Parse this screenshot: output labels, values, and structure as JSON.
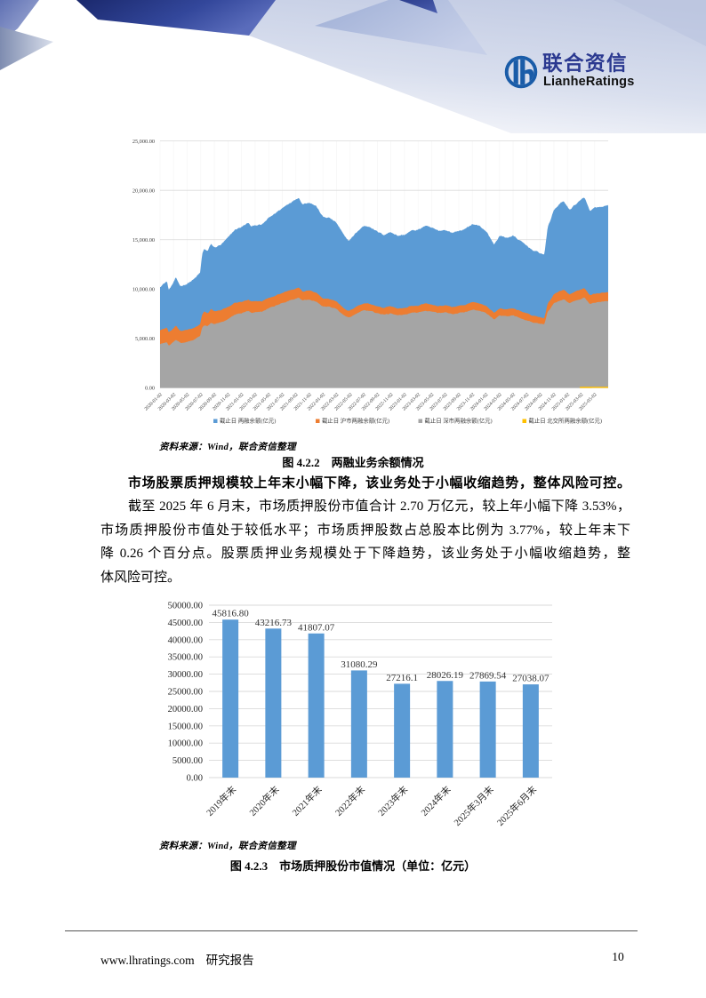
{
  "page": {
    "number": "10"
  },
  "header": {
    "logo": {
      "cjk": "联合资信",
      "latin": "LianheRatings",
      "ring_color": "#1A5CA8",
      "cjk_color": "#2B3990",
      "latin_color": "#111111"
    },
    "banner_colors": {
      "navy_dark": "#1B2A6E",
      "navy_light": "#5668B8",
      "medium_blue": "#A9B6D9",
      "pale_blue": "#C7CFE5",
      "corner_blue": "#6274B5",
      "gray_wedge": "#8593B5"
    }
  },
  "chart_data": [
    {
      "type": "area",
      "name": "margin-balance-area-chart",
      "ylim": [
        0,
        25000
      ],
      "ytick_step": 5000,
      "ytick_labels": [
        "0.00",
        "5,000.00",
        "10,000.00",
        "15,000.00",
        "20,000.00",
        "25,000.00"
      ],
      "xtick_labels": [
        "2020-01-02",
        "2020-03-02",
        "2020-05-02",
        "2020-07-02",
        "2020-09-02",
        "2020-11-02",
        "2021-01-02",
        "2021-03-02",
        "2021-05-02",
        "2021-07-02",
        "2021-09-02",
        "2021-11-02",
        "2022-01-02",
        "2022-03-02",
        "2022-05-02",
        "2022-07-02",
        "2022-09-02",
        "2022-11-02",
        "2023-01-02",
        "2023-03-02",
        "2023-05-02",
        "2023-07-02",
        "2023-09-02",
        "2023-11-02",
        "2024-01-02",
        "2024-03-02",
        "2024-05-02",
        "2024-07-02",
        "2024-09-02",
        "2024-11-02",
        "2025-01-02",
        "2025-03-02",
        "2025-05-02"
      ],
      "x_months_total": 66,
      "legend": [
        {
          "label": "截止日 两融余额(亿元)",
          "color": "#5B9BD5"
        },
        {
          "label": "截止日 沪市两融余额(亿元)",
          "color": "#ED7D31"
        },
        {
          "label": "截止日 深市两融余额(亿元)",
          "color": "#A5A5A5"
        },
        {
          "label": "截止日 北交所两融余额(亿元)",
          "color": "#FFC000"
        }
      ],
      "series": [
        {
          "name": "截止日 两融余额(亿元)",
          "color": "#5B9BD5",
          "render": "area",
          "jitter": 55,
          "keypoints": [
            [
              0,
              10250
            ],
            [
              1,
              10800
            ],
            [
              1.3,
              9900
            ],
            [
              2,
              10700
            ],
            [
              2.3,
              11150
            ],
            [
              3,
              10300
            ],
            [
              4,
              10550
            ],
            [
              5,
              11000
            ],
            [
              5.9,
              11650
            ],
            [
              6.2,
              13500
            ],
            [
              6.5,
              14100
            ],
            [
              7,
              13800
            ],
            [
              7.5,
              14600
            ],
            [
              8,
              14200
            ],
            [
              9,
              14500
            ],
            [
              10,
              15200
            ],
            [
              11,
              16000
            ],
            [
              12,
              16300
            ],
            [
              13,
              16700
            ],
            [
              13.5,
              16300
            ],
            [
              14,
              16500
            ],
            [
              15,
              16500
            ],
            [
              16,
              17200
            ],
            [
              17,
              17700
            ],
            [
              18,
              18200
            ],
            [
              19,
              18700
            ],
            [
              20,
              19100
            ],
            [
              20.4,
              19300
            ],
            [
              21,
              18600
            ],
            [
              22,
              18800
            ],
            [
              23,
              18400
            ],
            [
              24,
              17300
            ],
            [
              25,
              17200
            ],
            [
              26,
              16700
            ],
            [
              27.2,
              15300
            ],
            [
              27.8,
              14900
            ],
            [
              28.5,
              15400
            ],
            [
              29,
              15800
            ],
            [
              30,
              16400
            ],
            [
              31,
              16300
            ],
            [
              32,
              15800
            ],
            [
              33,
              15500
            ],
            [
              34,
              15800
            ],
            [
              35,
              15400
            ],
            [
              36,
              15500
            ],
            [
              37,
              15900
            ],
            [
              38,
              16000
            ],
            [
              39,
              16400
            ],
            [
              40,
              16200
            ],
            [
              41,
              15900
            ],
            [
              42,
              16000
            ],
            [
              43,
              15700
            ],
            [
              44,
              15900
            ],
            [
              45,
              16100
            ],
            [
              46,
              16600
            ],
            [
              47,
              16400
            ],
            [
              48,
              15900
            ],
            [
              49.2,
              14500
            ],
            [
              50,
              15400
            ],
            [
              51,
              15200
            ],
            [
              52,
              15400
            ],
            [
              53,
              14900
            ],
            [
              54,
              14400
            ],
            [
              55,
              13900
            ],
            [
              56.6,
              13500
            ],
            [
              57.1,
              16300
            ],
            [
              57.5,
              17000
            ],
            [
              58,
              18000
            ],
            [
              58.5,
              18400
            ],
            [
              59,
              18700
            ],
            [
              59.5,
              18900
            ],
            [
              60.3,
              18000
            ],
            [
              61,
              18500
            ],
            [
              62,
              19000
            ],
            [
              62.5,
              19300
            ],
            [
              63.3,
              17900
            ],
            [
              64,
              18200
            ],
            [
              65,
              18300
            ],
            [
              66,
              18500
            ]
          ]
        },
        {
          "name": "截止日 沪市两融余额(亿元)",
          "color": "#ED7D31",
          "render": "area",
          "jitter": 32,
          "keypoints": [
            [
              0,
              5842
            ],
            [
              1,
              6120
            ],
            [
              1.3,
              5600
            ],
            [
              2,
              6028
            ],
            [
              2.3,
              6270
            ],
            [
              3,
              5768
            ],
            [
              4,
              5873
            ],
            [
              5,
              6087
            ],
            [
              5.9,
              6410
            ],
            [
              6.2,
              7420
            ],
            [
              6.5,
              7750
            ],
            [
              7,
              7560
            ],
            [
              7.5,
              7975
            ],
            [
              8,
              7739
            ],
            [
              9,
              7866
            ],
            [
              10,
              8208
            ],
            [
              11,
              8600
            ],
            [
              12,
              8720
            ],
            [
              13,
              8915
            ],
            [
              13.5,
              8692
            ],
            [
              14,
              8789
            ],
            [
              15,
              8770
            ],
            [
              16,
              9122
            ],
            [
              17,
              9366
            ],
            [
              18,
              9610
            ],
            [
              19,
              9858
            ],
            [
              20,
              10053
            ],
            [
              20.4,
              10152
            ],
            [
              21,
              9774
            ],
            [
              22,
              9864
            ],
            [
              23,
              9639
            ],
            [
              24,
              9048
            ],
            [
              25,
              8994
            ],
            [
              26,
              8731
            ],
            [
              27.2,
              7998
            ],
            [
              27.8,
              7788
            ],
            [
              28.5,
              8048
            ],
            [
              29,
              8257
            ],
            [
              30,
              8569
            ],
            [
              31,
              8515
            ],
            [
              32,
              8253
            ],
            [
              33,
              8095
            ],
            [
              34,
              8250
            ],
            [
              35,
              8040
            ],
            [
              36,
              8091
            ],
            [
              37,
              8301
            ],
            [
              38,
              8355
            ],
            [
              39,
              8565
            ],
            [
              40,
              8462
            ],
            [
              41,
              8306
            ],
            [
              42,
              8360
            ],
            [
              43,
              8205
            ],
            [
              44,
              8310
            ],
            [
              45,
              8416
            ],
            [
              46,
              8679
            ],
            [
              47,
              8576
            ],
            [
              48,
              8316
            ],
            [
              49.2,
              7587
            ],
            [
              50,
              8061
            ],
            [
              51,
              7960
            ],
            [
              52,
              8068
            ],
            [
              53,
              7809
            ],
            [
              54,
              7550
            ],
            [
              55,
              7291
            ],
            [
              56.6,
              7086
            ],
            [
              57.1,
              8558
            ],
            [
              57.5,
              8925
            ],
            [
              58,
              9450
            ],
            [
              58.5,
              9660
            ],
            [
              59,
              9818
            ],
            [
              59.5,
              9922
            ],
            [
              60.3,
              9450
            ],
            [
              61,
              9712
            ],
            [
              62,
              9975
            ],
            [
              62.5,
              10132
            ],
            [
              63.3,
              9398
            ],
            [
              64,
              9555
            ],
            [
              65,
              9608
            ],
            [
              66,
              9712
            ]
          ]
        },
        {
          "name": "截止日 深市两融余额(亿元)",
          "color": "#A5A5A5",
          "render": "area",
          "jitter": 32,
          "keypoints": [
            [
              0,
              4408
            ],
            [
              1,
              4680
            ],
            [
              1.3,
              4300
            ],
            [
              2,
              4672
            ],
            [
              2.3,
              4880
            ],
            [
              3,
              4532
            ],
            [
              4,
              4677
            ],
            [
              5,
              4913
            ],
            [
              5.9,
              5240
            ],
            [
              6.2,
              6080
            ],
            [
              6.5,
              6350
            ],
            [
              7,
              6240
            ],
            [
              7.5,
              6625
            ],
            [
              8,
              6461
            ],
            [
              9,
              6634
            ],
            [
              10,
              6992
            ],
            [
              11,
              7400
            ],
            [
              12,
              7579
            ],
            [
              13,
              7785
            ],
            [
              13.5,
              7608
            ],
            [
              14,
              7711
            ],
            [
              15,
              7730
            ],
            [
              16,
              8078
            ],
            [
              17,
              8334
            ],
            [
              18,
              8590
            ],
            [
              19,
              8842
            ],
            [
              20,
              9047
            ],
            [
              20.4,
              9148
            ],
            [
              21,
              8826
            ],
            [
              22,
              8936
            ],
            [
              23,
              8761
            ],
            [
              24,
              8252
            ],
            [
              25,
              8206
            ],
            [
              26,
              7969
            ],
            [
              27.2,
              7302
            ],
            [
              27.8,
              7112
            ],
            [
              28.5,
              7352
            ],
            [
              29,
              7543
            ],
            [
              30,
              7831
            ],
            [
              31,
              7785
            ],
            [
              32,
              7547
            ],
            [
              33,
              7405
            ],
            [
              34,
              7550
            ],
            [
              35,
              7360
            ],
            [
              36,
              7409
            ],
            [
              37,
              7599
            ],
            [
              38,
              7645
            ],
            [
              39,
              7835
            ],
            [
              40,
              7738
            ],
            [
              41,
              7594
            ],
            [
              42,
              7640
            ],
            [
              43,
              7495
            ],
            [
              44,
              7590
            ],
            [
              45,
              7684
            ],
            [
              46,
              7921
            ],
            [
              47,
              7824
            ],
            [
              48,
              7584
            ],
            [
              49.2,
              6913
            ],
            [
              50,
              7339
            ],
            [
              51,
              7240
            ],
            [
              52,
              7332
            ],
            [
              53,
              7091
            ],
            [
              54,
              6850
            ],
            [
              55,
              6609
            ],
            [
              56.6,
              6414
            ],
            [
              57.1,
              7742
            ],
            [
              57.5,
              8075
            ],
            [
              58,
              8550
            ],
            [
              58.5,
              8740
            ],
            [
              59,
              8882
            ],
            [
              59.5,
              8978
            ],
            [
              60.3,
              8550
            ],
            [
              61,
              8788
            ],
            [
              62,
              9025
            ],
            [
              62.5,
              9168
            ],
            [
              63.3,
              8502
            ],
            [
              64,
              8645
            ],
            [
              65,
              8692
            ],
            [
              66,
              8788
            ]
          ]
        },
        {
          "name": "截止日 北交所两融余额(亿元)",
          "color": "#FFC000",
          "render": "line",
          "jitter": 0,
          "keypoints": [
            [
              61.8,
              55
            ],
            [
              66,
              60
            ]
          ]
        }
      ],
      "source": "资料来源：Wind，联合资信整理",
      "caption": "图 4.2.2　两融业务余额情况"
    },
    {
      "type": "bar",
      "name": "pledged-shares-bar-chart",
      "categories": [
        "2019年末",
        "2020年末",
        "2021年末",
        "2022年末",
        "2023年末",
        "2024年末",
        "2025年3月末",
        "2025年6月末"
      ],
      "values": [
        45816.8,
        43216.73,
        41807.07,
        31080.29,
        27216.1,
        28026.19,
        27869.54,
        27038.07
      ],
      "value_labels": [
        "45816.80",
        "43216.73",
        "41807.07",
        "31080.29",
        "27216.1",
        "28026.19",
        "27869.54",
        "27038.07"
      ],
      "ylim": [
        0,
        50000
      ],
      "ytick_step": 5000,
      "bar_color": "#5B9BD5",
      "source": "资料来源：Wind，联合资信整理",
      "caption": "图 4.2.3　市场质押股份市值情况（单位：亿元）"
    }
  ],
  "paragraphs": {
    "bold_line": "市场股票质押规模较上年末小幅下降，该业务处于小幅收缩趋势，整体风险可控。",
    "p2_line1": "截至 2025 年 6 月末，市场质押股份市值合计 2.70 万亿元，较上年小幅下降 3.53%，",
    "p2_line2": "市场质押股份市值处于较低水平；市场质押股数占总股本比例为 3.77%，较上年末下",
    "p2_line3": "降 0.26 个百分点。股票质押业务规模处于下降趋势，该业务处于小幅收缩趋势，整",
    "p2_line4": "体风险可控。"
  },
  "footer": {
    "site": "www.lhratings.com",
    "label": "研究报告",
    "page_number": "10"
  }
}
